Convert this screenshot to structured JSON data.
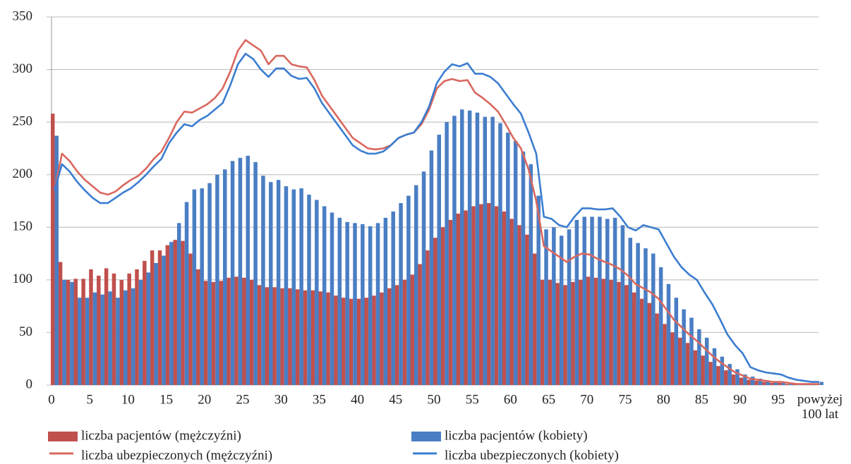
{
  "chart_data": {
    "type": "bar",
    "categories": [
      "0",
      null,
      null,
      null,
      null,
      "5",
      null,
      null,
      null,
      null,
      "10",
      null,
      null,
      null,
      null,
      "15",
      null,
      null,
      null,
      null,
      "20",
      null,
      null,
      null,
      null,
      "25",
      null,
      null,
      null,
      null,
      "30",
      null,
      null,
      null,
      null,
      "35",
      null,
      null,
      null,
      null,
      "40",
      null,
      null,
      null,
      null,
      "45",
      null,
      null,
      null,
      null,
      "50",
      null,
      null,
      null,
      null,
      "55",
      null,
      null,
      null,
      null,
      "60",
      null,
      null,
      null,
      null,
      "65",
      null,
      null,
      null,
      null,
      "70",
      null,
      null,
      null,
      null,
      "75",
      null,
      null,
      null,
      null,
      "80",
      null,
      null,
      null,
      null,
      "85",
      null,
      null,
      null,
      null,
      "90",
      null,
      null,
      null,
      null,
      "95",
      null,
      null,
      null,
      null,
      "powyżej 100 lat"
    ],
    "ylim": [
      0,
      350
    ],
    "yticks": [
      0,
      50,
      100,
      150,
      200,
      250,
      300,
      350
    ],
    "grid": true,
    "series": [
      {
        "name": "liczba pacjentów (mężczyźni)",
        "type": "bar",
        "color": "#c0504d",
        "values": [
          258,
          117,
          100,
          101,
          101,
          110,
          104,
          111,
          106,
          100,
          106,
          110,
          118,
          128,
          128,
          133,
          138,
          137,
          125,
          110,
          99,
          98,
          99,
          102,
          103,
          102,
          100,
          95,
          93,
          93,
          92,
          92,
          91,
          90,
          90,
          89,
          88,
          85,
          83,
          82,
          82,
          83,
          85,
          88,
          92,
          95,
          100,
          105,
          115,
          128,
          140,
          150,
          157,
          163,
          166,
          170,
          172,
          173,
          170,
          165,
          158,
          152,
          143,
          125,
          100,
          100,
          97,
          95,
          98,
          100,
          103,
          102,
          101,
          100,
          98,
          95,
          88,
          82,
          78,
          68,
          58,
          50,
          45,
          40,
          33,
          28,
          22,
          18,
          14,
          10,
          7,
          5,
          4,
          3,
          2,
          2,
          1,
          1,
          1,
          1,
          1
        ]
      },
      {
        "name": "liczba pacjentów (kobiety)",
        "type": "bar",
        "color": "#4a7ec4",
        "values": [
          237,
          100,
          98,
          83,
          83,
          88,
          86,
          89,
          83,
          90,
          92,
          100,
          107,
          116,
          123,
          136,
          154,
          174,
          186,
          187,
          192,
          200,
          205,
          213,
          216,
          218,
          212,
          199,
          193,
          195,
          189,
          186,
          187,
          181,
          176,
          170,
          164,
          159,
          155,
          154,
          153,
          151,
          154,
          159,
          165,
          173,
          180,
          190,
          203,
          223,
          238,
          250,
          256,
          262,
          261,
          259,
          255,
          255,
          249,
          240,
          232,
          222,
          210,
          180,
          148,
          150,
          142,
          148,
          157,
          160,
          160,
          160,
          158,
          159,
          152,
          140,
          135,
          130,
          125,
          112,
          96,
          83,
          72,
          64,
          53,
          45,
          35,
          27,
          20,
          15,
          10,
          8,
          6,
          4,
          3,
          2,
          2,
          1,
          1,
          1,
          3
        ]
      },
      {
        "name": "liczba ubezpieczonych (mężczyźni)",
        "type": "line",
        "color": "#d9685e",
        "values": [
          185,
          220,
          213,
          203,
          195,
          189,
          183,
          181,
          184,
          190,
          195,
          199,
          206,
          215,
          222,
          235,
          250,
          260,
          259,
          263,
          267,
          273,
          282,
          298,
          318,
          328,
          323,
          318,
          305,
          313,
          313,
          305,
          303,
          302,
          290,
          275,
          265,
          255,
          245,
          235,
          230,
          225,
          224,
          225,
          228,
          235,
          238,
          240,
          248,
          262,
          282,
          289,
          291,
          289,
          290,
          278,
          273,
          267,
          260,
          248,
          235,
          225,
          205,
          175,
          132,
          127,
          122,
          117,
          122,
          125,
          124,
          120,
          117,
          114,
          110,
          104,
          96,
          92,
          88,
          82,
          72,
          62,
          55,
          48,
          42,
          35,
          28,
          22,
          17,
          12,
          9,
          6,
          5,
          4,
          3,
          3,
          2,
          1,
          1,
          1,
          1
        ]
      },
      {
        "name": "liczba ubezpieczonych (kobiety)",
        "type": "line",
        "color": "#3b7dd0",
        "values": [
          185,
          210,
          203,
          193,
          185,
          178,
          173,
          173,
          178,
          183,
          187,
          193,
          200,
          208,
          215,
          230,
          240,
          248,
          246,
          252,
          256,
          262,
          268,
          285,
          305,
          315,
          310,
          300,
          293,
          301,
          301,
          294,
          291,
          292,
          282,
          268,
          258,
          248,
          238,
          228,
          223,
          220,
          220,
          222,
          228,
          235,
          238,
          240,
          250,
          265,
          287,
          298,
          305,
          303,
          306,
          296,
          296,
          293,
          287,
          277,
          267,
          258,
          240,
          220,
          160,
          158,
          152,
          150,
          160,
          168,
          168,
          167,
          167,
          168,
          160,
          150,
          147,
          152,
          150,
          148,
          135,
          122,
          112,
          105,
          100,
          88,
          77,
          63,
          48,
          38,
          30,
          17,
          14,
          12,
          11,
          10,
          7,
          5,
          4,
          3,
          3
        ]
      }
    ]
  }
}
